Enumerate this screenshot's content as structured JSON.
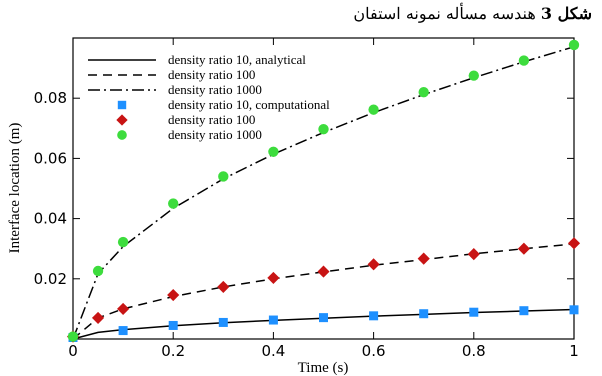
{
  "caption": {
    "label": "شکل 3",
    "text": "هندسه مسأله نمونه استفان"
  },
  "chart_data": {
    "type": "line",
    "xlabel": "Time (s)",
    "ylabel": "Interface location (m)",
    "xlim": [
      0,
      1
    ],
    "ylim": [
      0,
      0.1
    ],
    "x_ticks": [
      "0",
      "0.2",
      "0.4",
      "0.6",
      "0.8",
      "1"
    ],
    "y_ticks": [
      "0.02",
      "0.04",
      "0.06",
      "0.08"
    ],
    "legend_position": "top-left",
    "series": [
      {
        "name": "density ratio 10, analytical",
        "kind": "line",
        "dash": "solid",
        "color": "#000000",
        "x": [
          0,
          0.05,
          0.1,
          0.2,
          0.3,
          0.4,
          0.5,
          0.6,
          0.7,
          0.8,
          0.9,
          1.0
        ],
        "y": [
          0,
          0.0022,
          0.0031,
          0.0044,
          0.0054,
          0.0062,
          0.0069,
          0.0076,
          0.0082,
          0.0088,
          0.0093,
          0.0098
        ]
      },
      {
        "name": "density ratio 100",
        "kind": "line",
        "dash": "dashed",
        "color": "#000000",
        "x": [
          0,
          0.05,
          0.1,
          0.2,
          0.3,
          0.4,
          0.5,
          0.6,
          0.7,
          0.8,
          0.9,
          1.0
        ],
        "y": [
          0,
          0.007,
          0.01,
          0.0141,
          0.0173,
          0.02,
          0.0223,
          0.0245,
          0.0264,
          0.0283,
          0.03,
          0.0316
        ]
      },
      {
        "name": "density ratio 1000",
        "kind": "line",
        "dash": "dashdot",
        "color": "#000000",
        "x": [
          0,
          0.05,
          0.1,
          0.2,
          0.3,
          0.4,
          0.5,
          0.6,
          0.7,
          0.8,
          0.9,
          1.0
        ],
        "y": [
          0,
          0.0217,
          0.0307,
          0.0434,
          0.0532,
          0.0614,
          0.0686,
          0.0752,
          0.0812,
          0.0868,
          0.0921,
          0.0971
        ]
      },
      {
        "name": "density ratio 10, computational",
        "kind": "marker",
        "marker": "square",
        "color": "#1e90ff",
        "x": [
          0,
          0.1,
          0.2,
          0.3,
          0.4,
          0.5,
          0.6,
          0.7,
          0.8,
          0.9,
          1.0
        ],
        "y": [
          0.0005,
          0.0028,
          0.0045,
          0.0055,
          0.0063,
          0.0071,
          0.0077,
          0.0084,
          0.0089,
          0.0094,
          0.0097
        ]
      },
      {
        "name": "density ratio 100",
        "kind": "marker",
        "marker": "diamond",
        "color": "#c81414",
        "x": [
          0,
          0.05,
          0.1,
          0.2,
          0.3,
          0.4,
          0.5,
          0.6,
          0.7,
          0.8,
          0.9,
          1.0
        ],
        "y": [
          0.0008,
          0.007,
          0.01,
          0.0146,
          0.0173,
          0.0203,
          0.0224,
          0.0248,
          0.0267,
          0.0282,
          0.03,
          0.0318
        ]
      },
      {
        "name": "density ratio 1000",
        "kind": "marker",
        "marker": "circle",
        "color": "#3ddc3d",
        "x": [
          0,
          0.05,
          0.1,
          0.2,
          0.3,
          0.4,
          0.5,
          0.6,
          0.7,
          0.8,
          0.9,
          1.0
        ],
        "y": [
          0.0008,
          0.0226,
          0.0322,
          0.045,
          0.054,
          0.0622,
          0.0697,
          0.0762,
          0.082,
          0.0875,
          0.0925,
          0.0977
        ]
      }
    ]
  }
}
